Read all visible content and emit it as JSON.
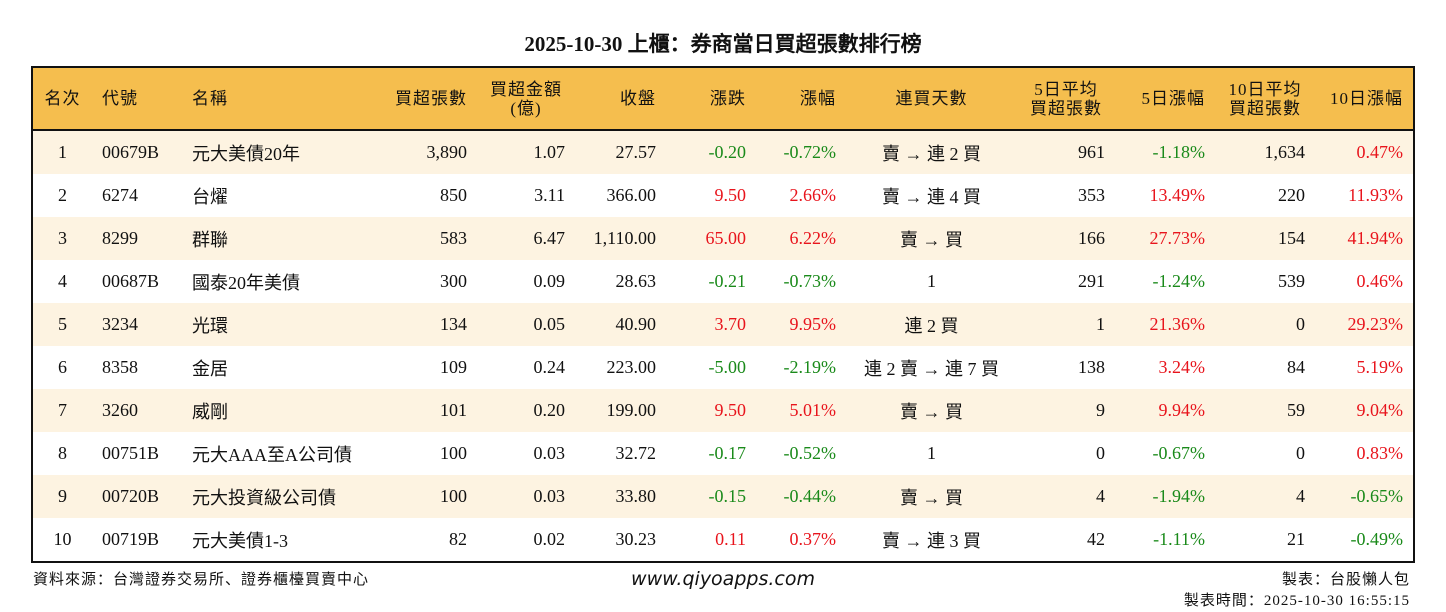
{
  "title": "2025-10-30 上櫃：券商當日買超張數排行榜",
  "colors": {
    "header": "#F5BE4E",
    "row_alt": "#FDF3E1",
    "up": "#E8141C",
    "down": "#1A8A1A"
  },
  "columns": [
    {
      "l1": "名次",
      "l2": "",
      "align": "c"
    },
    {
      "l1": "代號",
      "l2": "",
      "align": "l"
    },
    {
      "l1": "名稱",
      "l2": "",
      "align": "l"
    },
    {
      "l1": "買超張數",
      "l2": "",
      "align": "r"
    },
    {
      "l1": "買超金額",
      "l2": "(億)",
      "align": "r"
    },
    {
      "l1": "收盤",
      "l2": "",
      "align": "r"
    },
    {
      "l1": "漲跌",
      "l2": "",
      "align": "r"
    },
    {
      "l1": "漲幅",
      "l2": "",
      "align": "r"
    },
    {
      "l1": "連買天數",
      "l2": "",
      "align": "c"
    },
    {
      "l1": "5日平均",
      "l2": "買超張數",
      "align": "r"
    },
    {
      "l1": "5日漲幅",
      "l2": "",
      "align": "r"
    },
    {
      "l1": "10日平均",
      "l2": "買超張數",
      "align": "r"
    },
    {
      "l1": "10日漲幅",
      "l2": "",
      "align": "r"
    }
  ],
  "rows": [
    [
      "1",
      "00679B",
      "元大美債20年",
      "3,890",
      "1.07",
      "27.57",
      "-0.20",
      "-0.72%",
      "賣 → 連 2 買",
      "961",
      "-1.18%",
      "1,634",
      "0.47%"
    ],
    [
      "2",
      "6274",
      "台燿",
      "850",
      "3.11",
      "366.00",
      "9.50",
      "2.66%",
      "賣 → 連 4 買",
      "353",
      "13.49%",
      "220",
      "11.93%"
    ],
    [
      "3",
      "8299",
      "群聯",
      "583",
      "6.47",
      "1,110.00",
      "65.00",
      "6.22%",
      "賣 → 買",
      "166",
      "27.73%",
      "154",
      "41.94%"
    ],
    [
      "4",
      "00687B",
      "國泰20年美債",
      "300",
      "0.09",
      "28.63",
      "-0.21",
      "-0.73%",
      "1",
      "291",
      "-1.24%",
      "539",
      "0.46%"
    ],
    [
      "5",
      "3234",
      "光環",
      "134",
      "0.05",
      "40.90",
      "3.70",
      "9.95%",
      "連 2 買",
      "1",
      "21.36%",
      "0",
      "29.23%"
    ],
    [
      "6",
      "8358",
      "金居",
      "109",
      "0.24",
      "223.00",
      "-5.00",
      "-2.19%",
      "連 2 賣 → 連 7 買",
      "138",
      "3.24%",
      "84",
      "5.19%"
    ],
    [
      "7",
      "3260",
      "威剛",
      "101",
      "0.20",
      "199.00",
      "9.50",
      "5.01%",
      "賣 → 買",
      "9",
      "9.94%",
      "59",
      "9.04%"
    ],
    [
      "8",
      "00751B",
      "元大AAA至A公司債",
      "100",
      "0.03",
      "32.72",
      "-0.17",
      "-0.52%",
      "1",
      "0",
      "-0.67%",
      "0",
      "0.83%"
    ],
    [
      "9",
      "00720B",
      "元大投資級公司債",
      "100",
      "0.03",
      "33.80",
      "-0.15",
      "-0.44%",
      "賣 → 買",
      "4",
      "-1.94%",
      "4",
      "-0.65%"
    ],
    [
      "10",
      "00719B",
      "元大美債1-3",
      "82",
      "0.02",
      "30.23",
      "0.11",
      "0.37%",
      "賣 → 連 3 買",
      "42",
      "-1.11%",
      "21",
      "-0.49%"
    ]
  ],
  "footer": {
    "source": "資料來源：台灣證券交易所、證券櫃檯買賣中心",
    "site": "www.qiyoapps.com",
    "maker": "製表：台股懶人包",
    "time": "製表時間：2025-10-30 16:55:15"
  }
}
